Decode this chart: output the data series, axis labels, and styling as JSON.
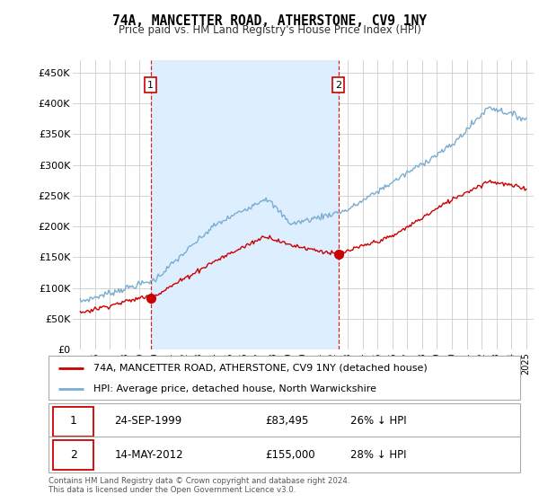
{
  "title": "74A, MANCETTER ROAD, ATHERSTONE, CV9 1NY",
  "subtitle": "Price paid vs. HM Land Registry's House Price Index (HPI)",
  "red_label": "74A, MANCETTER ROAD, ATHERSTONE, CV9 1NY (detached house)",
  "blue_label": "HPI: Average price, detached house, North Warwickshire",
  "footer": "Contains HM Land Registry data © Crown copyright and database right 2024.\nThis data is licensed under the Open Government Licence v3.0.",
  "point1_year": 1999.73,
  "point1_price": 83495,
  "point2_year": 2012.37,
  "point2_price": 155000,
  "background_color": "#ffffff",
  "plot_bg_color": "#ffffff",
  "grid_color": "#cccccc",
  "red_color": "#cc0000",
  "blue_color": "#7aadcf",
  "fill_color": "#ddeeff",
  "ylim_min": 0,
  "ylim_max": 470000,
  "yticks": [
    0,
    50000,
    100000,
    150000,
    200000,
    250000,
    300000,
    350000,
    400000,
    450000
  ],
  "ytick_labels": [
    "£0",
    "£50K",
    "£100K",
    "£150K",
    "£200K",
    "£250K",
    "£300K",
    "£350K",
    "£400K",
    "£450K"
  ],
  "xmin": 1994.5,
  "xmax": 2025.5
}
